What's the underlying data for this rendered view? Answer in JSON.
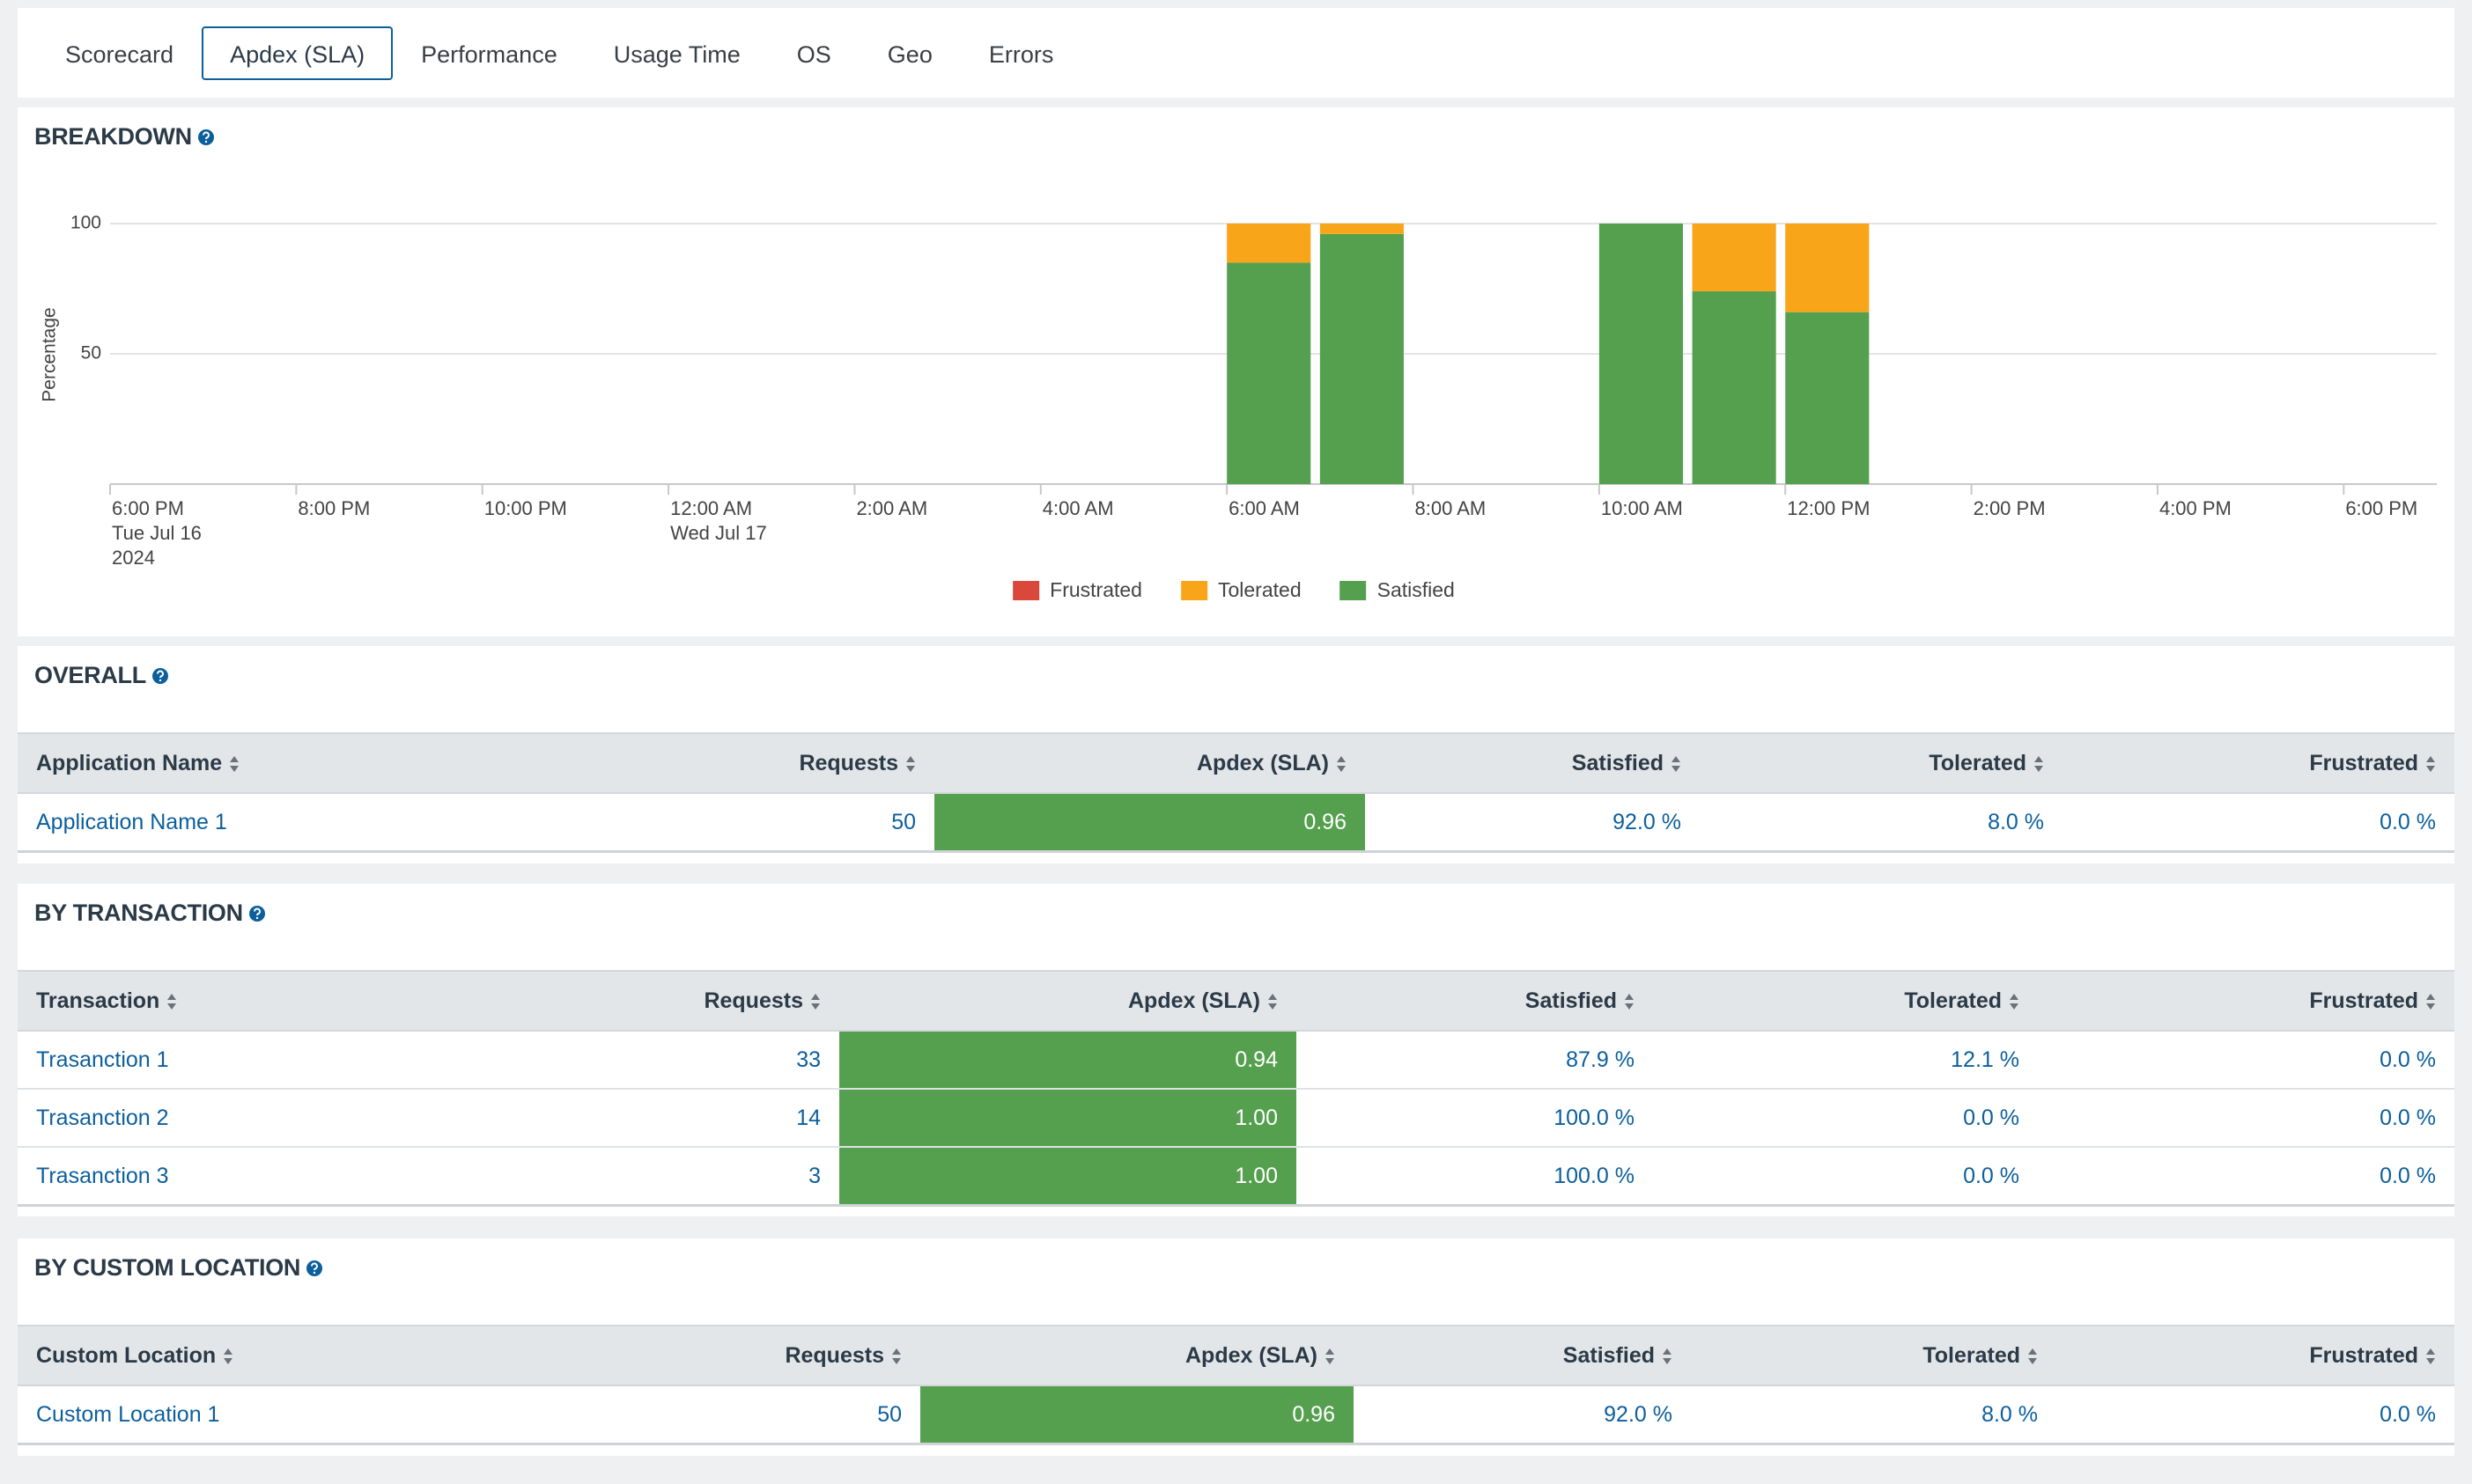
{
  "tabs": [
    "Scorecard",
    "Apdex (SLA)",
    "Performance",
    "Usage Time",
    "OS",
    "Geo",
    "Errors"
  ],
  "chart_data": {
    "type": "bar",
    "stacked": true,
    "title": "BREAKDOWN",
    "y_label": "Percentage",
    "x": [
      "2024-07-17 06:00",
      "2024-07-17 07:00",
      "2024-07-17 10:00",
      "2024-07-17 11:00",
      "2024-07-17 12:00"
    ],
    "xlim": [
      "2024-07-16 18:00",
      "2024-07-17 19:00"
    ],
    "xticks": [
      {
        "value": "2024-07-16 18:00",
        "label": "6:00 PM\nTue Jul 16\n2024"
      },
      {
        "value": "2024-07-16 20:00",
        "label": "8:00 PM"
      },
      {
        "value": "2024-07-16 22:00",
        "label": "10:00 PM"
      },
      {
        "value": "2024-07-17 00:00",
        "label": "12:00 AM\nWed Jul 17"
      },
      {
        "value": "2024-07-17 02:00",
        "label": "2:00 AM"
      },
      {
        "value": "2024-07-17 04:00",
        "label": "4:00 AM"
      },
      {
        "value": "2024-07-17 06:00",
        "label": "6:00 AM"
      },
      {
        "value": "2024-07-17 08:00",
        "label": "8:00 AM"
      },
      {
        "value": "2024-07-17 10:00",
        "label": "10:00 AM"
      },
      {
        "value": "2024-07-17 12:00",
        "label": "12:00 PM"
      },
      {
        "value": "2024-07-17 14:00",
        "label": "2:00 PM"
      },
      {
        "value": "2024-07-17 16:00",
        "label": "4:00 PM"
      },
      {
        "value": "2024-07-17 18:00",
        "label": "6:00 PM"
      }
    ],
    "ylim": [
      0,
      100
    ],
    "yticks": [
      50,
      100
    ],
    "grid": true,
    "legend": "bottom",
    "series": [
      {
        "name": "Frustrated",
        "color": "#d9483b",
        "values": [
          0,
          0,
          0,
          0,
          0
        ]
      },
      {
        "name": "Tolerated",
        "color": "#f9a51a",
        "values": [
          15,
          4,
          0,
          26,
          34
        ]
      },
      {
        "name": "Satisfied",
        "color": "#55a04e",
        "values": [
          85,
          96,
          100,
          74,
          66
        ]
      }
    ]
  },
  "overall": {
    "title": "OVERALL",
    "columns": [
      "Application Name",
      "Requests",
      "Apdex (SLA)",
      "Satisfied",
      "Tolerated",
      "Frustrated"
    ],
    "rows": [
      [
        "Application Name 1",
        "50",
        "0.96",
        "92.0 %",
        "8.0 %",
        "0.0 %"
      ]
    ]
  },
  "by_transaction": {
    "title": "BY TRANSACTION",
    "columns": [
      "Transaction",
      "Requests",
      "Apdex (SLA)",
      "Satisfied",
      "Tolerated",
      "Frustrated"
    ],
    "rows": [
      [
        "Trasanction 1",
        "33",
        "0.94",
        "87.9 %",
        "12.1 %",
        "0.0 %"
      ],
      [
        "Trasanction 2",
        "14",
        "1.00",
        "100.0 %",
        "0.0 %",
        "0.0 %"
      ],
      [
        "Trasanction 3",
        "3",
        "1.00",
        "100.0 %",
        "0.0 %",
        "0.0 %"
      ]
    ]
  },
  "by_custom_location": {
    "title": "BY CUSTOM LOCATION",
    "columns": [
      "Custom Location",
      "Requests",
      "Apdex (SLA)",
      "Satisfied",
      "Tolerated",
      "Frustrated"
    ],
    "rows": [
      [
        "Custom Location 1",
        "50",
        "0.96",
        "92.0 %",
        "8.0 %",
        "0.0 %"
      ]
    ]
  }
}
